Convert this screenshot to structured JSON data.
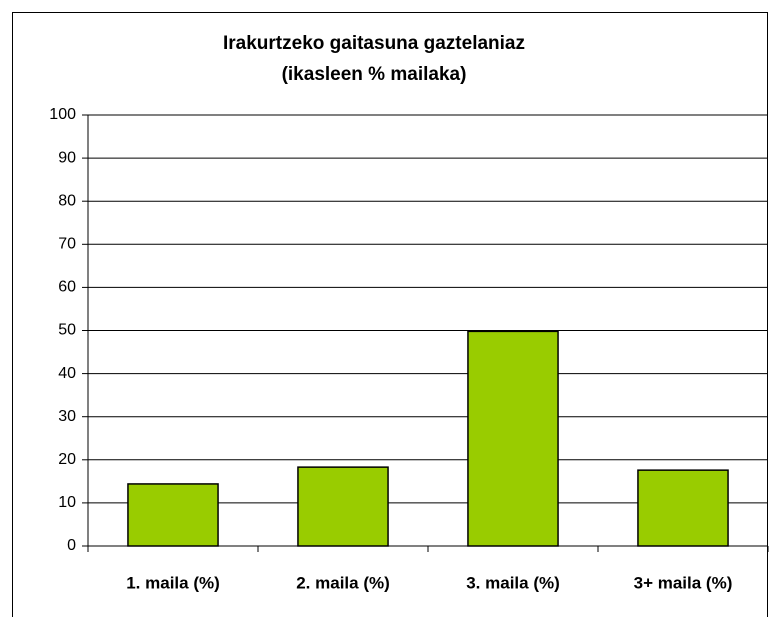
{
  "chart_data": {
    "type": "bar",
    "title": [
      "Irakurtzeko gaitasuna gaztelaniaz",
      "(ikasleen % mailaka)"
    ],
    "categories": [
      "1. maila (%)",
      "2. maila (%)",
      "3. maila (%)",
      "3+ maila (%)"
    ],
    "values": [
      14.4,
      18.3,
      49.8,
      17.6
    ],
    "color": "#99cc00",
    "ylim": [
      0,
      100
    ],
    "yticks": [
      0,
      10,
      20,
      30,
      40,
      50,
      60,
      70,
      80,
      90,
      100
    ],
    "grid": true
  }
}
